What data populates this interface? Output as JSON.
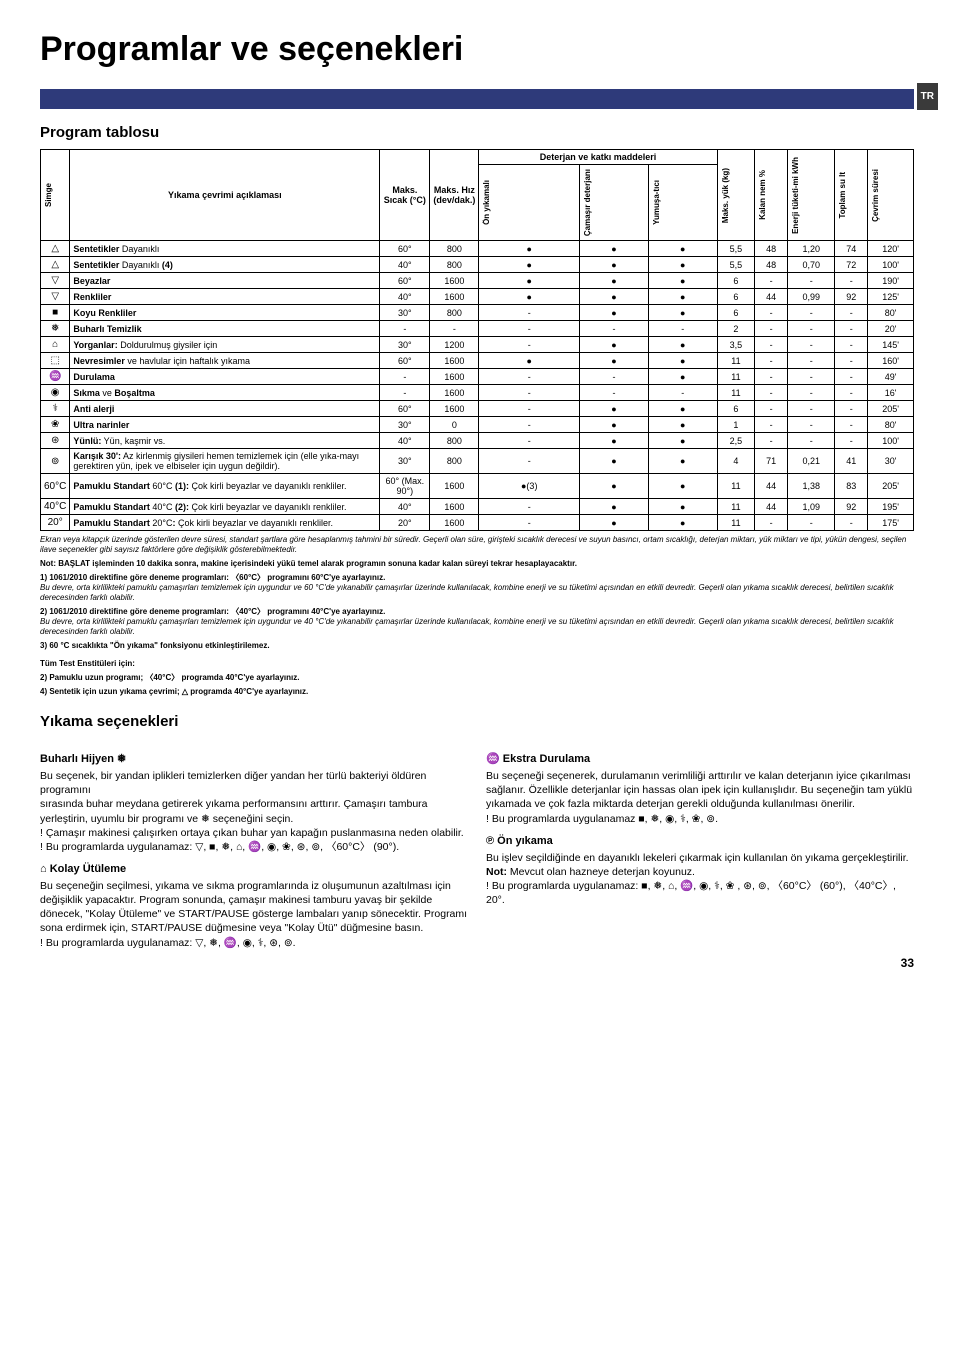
{
  "page": {
    "title": "Programlar ve seçenekleri",
    "lang_tag": "TR",
    "page_number": "33"
  },
  "program_table": {
    "title": "Program tablosu",
    "group_header_detergent": "Deterjan ve katkı maddeleri",
    "columns": {
      "simge": "Simge",
      "desc": "Yıkama çevrimi açıklaması",
      "maks_sicak": "Maks. Sıcak (°C)",
      "maks_hiz": "Maks. Hız (dev/dak.)",
      "on_yikamali": "Ön yıkamalı",
      "camasir_det": "Çamaşır deterjanı",
      "yumusatici": "Yumuşa-tıcı",
      "maks_yuk": "Maks. yük (kg)",
      "kalan_nem": "Kalan nem %",
      "enerji": "Enerji tüketi-mi kWh",
      "toplam_su": "Toplam su lt",
      "cevrim_suresi": "Çevrim süresi"
    },
    "rows": [
      {
        "icon": "△",
        "desc_html": "<b>Sentetikler</b> Dayanıklı",
        "temp": "60°",
        "spin": "800",
        "pre": "●",
        "det": "●",
        "soft": "●",
        "load": "5,5",
        "moist": "48",
        "energy": "1,20",
        "water": "74",
        "dur": "120'"
      },
      {
        "icon": "△",
        "desc_html": "<b>Sentetikler</b> Dayanıklı <b>(4)</b>",
        "temp": "40°",
        "spin": "800",
        "pre": "●",
        "det": "●",
        "soft": "●",
        "load": "5,5",
        "moist": "48",
        "energy": "0,70",
        "water": "72",
        "dur": "100'"
      },
      {
        "icon": "▽",
        "desc_html": "<b>Beyazlar</b>",
        "temp": "60°",
        "spin": "1600",
        "pre": "●",
        "det": "●",
        "soft": "●",
        "load": "6",
        "moist": "-",
        "energy": "-",
        "water": "-",
        "dur": "190'"
      },
      {
        "icon": "▽",
        "desc_html": "<b>Renkliler</b>",
        "temp": "40°",
        "spin": "1600",
        "pre": "●",
        "det": "●",
        "soft": "●",
        "load": "6",
        "moist": "44",
        "energy": "0,99",
        "water": "92",
        "dur": "125'"
      },
      {
        "icon": "■",
        "desc_html": "<b>Koyu Renkliler</b>",
        "temp": "30°",
        "spin": "800",
        "pre": "-",
        "det": "●",
        "soft": "●",
        "load": "6",
        "moist": "-",
        "energy": "-",
        "water": "-",
        "dur": "80'"
      },
      {
        "icon": "❅",
        "desc_html": "<b>Buharlı Temizlik</b>",
        "temp": "-",
        "spin": "-",
        "pre": "-",
        "det": "-",
        "soft": "-",
        "load": "2",
        "moist": "-",
        "energy": "-",
        "water": "-",
        "dur": "20'"
      },
      {
        "icon": "⌂",
        "desc_html": "<b>Yorganlar:</b> Doldurulmuş giysiler için",
        "temp": "30°",
        "spin": "1200",
        "pre": "-",
        "det": "●",
        "soft": "●",
        "load": "3,5",
        "moist": "-",
        "energy": "-",
        "water": "-",
        "dur": "145'"
      },
      {
        "icon": "⬚",
        "desc_html": "<b>Nevresimler</b> ve havlular için haftalık yıkama",
        "temp": "60°",
        "spin": "1600",
        "pre": "●",
        "det": "●",
        "soft": "●",
        "load": "11",
        "moist": "-",
        "energy": "-",
        "water": "-",
        "dur": "160'"
      },
      {
        "icon": "♒",
        "desc_html": "<b>Durulama</b>",
        "temp": "-",
        "spin": "1600",
        "pre": "-",
        "det": "-",
        "soft": "●",
        "load": "11",
        "moist": "-",
        "energy": "-",
        "water": "-",
        "dur": "49'"
      },
      {
        "icon": "◉",
        "desc_html": "<b>Sıkma</b> ve <b>Boşaltma</b>",
        "temp": "-",
        "spin": "1600",
        "pre": "-",
        "det": "-",
        "soft": "-",
        "load": "11",
        "moist": "-",
        "energy": "-",
        "water": "-",
        "dur": "16'"
      },
      {
        "icon": "⚕",
        "desc_html": "<b>Anti alerji</b>",
        "temp": "60°",
        "spin": "1600",
        "pre": "-",
        "det": "●",
        "soft": "●",
        "load": "6",
        "moist": "-",
        "energy": "-",
        "water": "-",
        "dur": "205'"
      },
      {
        "icon": "❀",
        "desc_html": "<b>Ultra narinler</b>",
        "temp": "30°",
        "spin": "0",
        "pre": "-",
        "det": "●",
        "soft": "●",
        "load": "1",
        "moist": "-",
        "energy": "-",
        "water": "-",
        "dur": "80'"
      },
      {
        "icon": "⊛",
        "desc_html": "<b>Yünlü:</b> Yün, kaşmir vs.",
        "temp": "40°",
        "spin": "800",
        "pre": "-",
        "det": "●",
        "soft": "●",
        "load": "2,5",
        "moist": "-",
        "energy": "-",
        "water": "-",
        "dur": "100'"
      },
      {
        "icon": "⊚",
        "desc_html": "<b>Karışık 30':</b> Az kirlenmiş giysileri hemen temizlemek için (elle yıka-mayı gerektiren yün, ipek ve elbiseler için uygun değildir).",
        "temp": "30°",
        "spin": "800",
        "pre": "-",
        "det": "●",
        "soft": "●",
        "load": "4",
        "moist": "71",
        "energy": "0,21",
        "water": "41",
        "dur": "30'"
      },
      {
        "icon": "60°C",
        "desc_html": "<b>Pamuklu Standart</b> 60°C <b>(1):</b> Çok kirli beyazlar ve dayanıklı renkliler.",
        "temp": "60° (Max. 90°)",
        "spin": "1600",
        "pre": "●(3)",
        "det": "●",
        "soft": "●",
        "load": "11",
        "moist": "44",
        "energy": "1,38",
        "water": "83",
        "dur": "205'"
      },
      {
        "icon": "40°C",
        "desc_html": "<b>Pamuklu Standart</b> 40°C <b>(2):</b> Çok kirli beyazlar ve dayanıklı renkliler.",
        "temp": "40°",
        "spin": "1600",
        "pre": "-",
        "det": "●",
        "soft": "●",
        "load": "11",
        "moist": "44",
        "energy": "1,09",
        "water": "92",
        "dur": "195'"
      },
      {
        "icon": "20°",
        "desc_html": "<b>Pamuklu Standart</b> 20°C<b>:</b> Çok kirli beyazlar ve dayanıklı renkliler.",
        "temp": "20°",
        "spin": "1600",
        "pre": "-",
        "det": "●",
        "soft": "●",
        "load": "11",
        "moist": "-",
        "energy": "-",
        "water": "-",
        "dur": "175'"
      }
    ],
    "footer_italic": "Ekran veya kitapçık üzerinde gösterilen devre süresi, standart şartlara göre hesaplanmış tahmini bir süredir. Geçerli olan süre, girişteki sıcaklık derecesi ve suyun basıncı, ortam sıcaklığı, deterjan miktarı, yük miktarı ve tipi, yükün dengesi, seçilen ilave seçenekler gibi sayısız faktörlere göre değişiklik gösterebilmektedir.",
    "footer_bold1": "Not: BAŞLAT işleminden 10 dakika sonra, makine içerisindeki yükü temel alarak programın sonuna kadar kalan süreyi tekrar hesaplayacaktır.",
    "notes": [
      {
        "bold": "1) 1061/2010 direktifine göre deneme programları: 〈60°C〉 programını 60°C'ye ayarlayınız.",
        "text": "Bu devre, orta kirlilikteki pamuklu çamaşırları temizlemek için uygundur ve 60 °C'de yıkanabilir çamaşırlar üzerinde kullanılacak, kombine enerji ve su tüketimi açısından en etkili devredir. Geçerli olan yıkama sıcaklık derecesi, belirtilen sıcaklık derecesinden farklı olabilir."
      },
      {
        "bold": "2) 1061/2010 direktifine göre deneme programları: 〈40°C〉 programını 40°C'ye ayarlayınız.",
        "text": "Bu devre, orta kirlilikteki pamuklu çamaşırları temizlemek için uygundur ve 40 °C'de yıkanabilir çamaşırlar üzerinde kullanılacak, kombine enerji ve su tüketimi açısından en etkili devredir. Geçerli olan yıkama sıcaklık derecesi, belirtilen sıcaklık derecesinden farklı olabilir."
      },
      {
        "bold": "3) 60 °C sıcaklıkta \"Ön yıkama\" fonksiyonu etkinleştirilemez.",
        "text": ""
      }
    ],
    "institute": {
      "head": "Tüm Test Enstitüleri için:",
      "l2": "2) Pamuklu uzun programı; 〈40°C〉 programda 40°C'ye ayarlayınız.",
      "l4": "4) Sentetik için uzun yıkama çevrimi; △ programda 40°C'ye ayarlayınız."
    }
  },
  "options": {
    "title": "Yıkama seçenekleri",
    "left": {
      "h1": "Buharlı Hijyen ❅",
      "p1": "Bu seçenek, bir yandan iplikleri temizlerken diğer yandan her türlü bakteriyi öldüren programını",
      "p2": "sırasında buhar meydana getirerek yıkama performansını arttırır. Çamaşırı tambura yerleştirin, uyumlu bir programı ve ❅ seçeneğini seçin.",
      "p3": "! Çamaşır makinesi çalışırken ortaya çıkan buhar yan kapağın puslanmasına neden olabilir.",
      "p4": "! Bu programlarda uygulanamaz: ▽, ■, ❅, ⌂, ♒, ◉, ❀, ⊛, ⊚, 〈60°C〉 (90°).",
      "h2": "⌂ Kolay Ütüleme",
      "p5": "Bu seçeneğin seçilmesi, yıkama ve sıkma programlarında iz oluşumunun azaltılması için değişiklik yapacaktır. Program sonunda, çamaşır makinesi tamburu yavaş bir şekilde dönecek, \"Kolay Ütüleme\" ve START/PAUSE gösterge lambaları yanıp sönecektir. Programı sona erdirmek için, START/PAUSE düğmesine veya \"Kolay Ütü\" düğmesine basın.",
      "p6": "! Bu programlarda uygulanamaz: ▽, ❅, ♒, ◉, ⚕, ⊛, ⊚."
    },
    "right": {
      "h1": "♒ Ekstra Durulama",
      "p1": "Bu seçeneği seçenerek, durulamanın verimliliği arttırılır ve kalan deterjanın iyice çıkarılması sağlanır. Özellikle deterjanlar için hassas olan ipek için kullanışlıdır. Bu seçeneğin tam yüklü yıkamada ve çok fazla miktarda deterjan gerekli olduğunda kullanılması önerilir.",
      "p2": "! Bu programlarda uygulanamaz ■, ❅, ◉, ⚕, ❀, ⊚.",
      "h2": "℗ Ön yıkama",
      "p3": "Bu işlev seçildiğinde en dayanıklı lekeleri çıkarmak için kullanılan ön yıkama gerçekleştirilir.",
      "p4_bold": "Not:",
      "p4_rest": " Mevcut olan hazneye deterjan koyunuz.",
      "p5": "! Bu programlarda uygulanamaz: ■, ❅, ⌂, ♒, ◉, ⚕, ❀ , ⊛, ⊚, 〈60°C〉 (60°), 〈40°C〉, 20°."
    }
  }
}
